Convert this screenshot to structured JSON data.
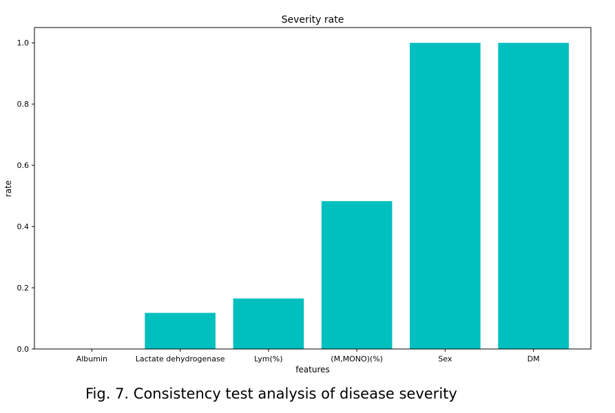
{
  "chart_data": {
    "type": "bar",
    "title": "Severity rate",
    "xlabel": "features",
    "ylabel": "rate",
    "categories": [
      "Albumin",
      "Lactate dehydrogenase",
      "Lym(%)",
      "(M,MONO)(%)",
      "Sex",
      "DM"
    ],
    "values": [
      0.0,
      0.118,
      0.165,
      0.483,
      1.0,
      1.0
    ],
    "ylim": [
      0,
      1.05
    ],
    "yticks": [
      "0.0",
      "0.2",
      "0.4",
      "0.6",
      "0.8",
      "1.0"
    ],
    "grid": false,
    "bar_color": "#00bfbf"
  },
  "caption": "Fig. 7. Consistency test analysis of disease severity"
}
